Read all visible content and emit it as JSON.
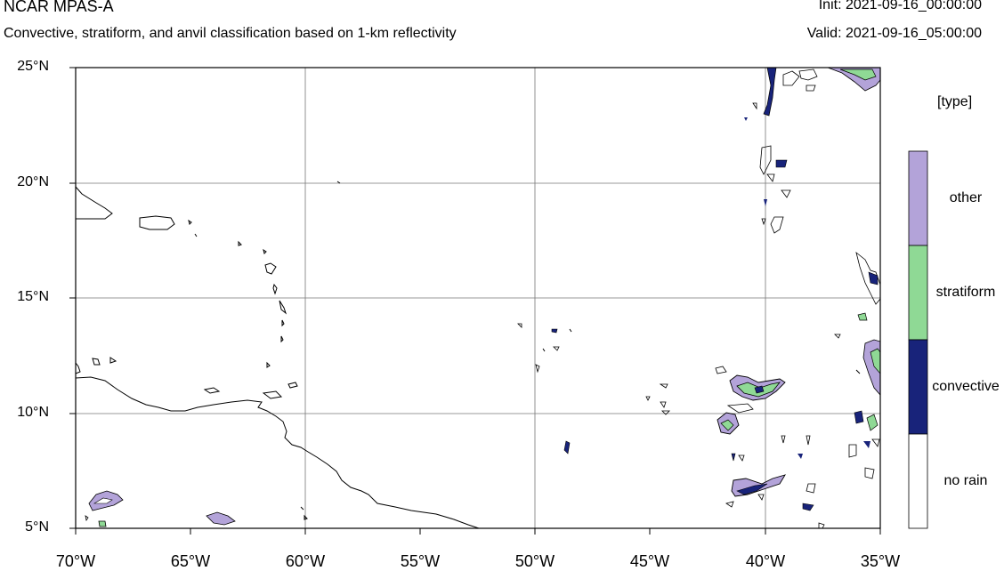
{
  "header": {
    "title": "NCAR MPAS-A",
    "subtitle": "Convective, stratiform, and anvil classification based on 1-km reflectivity",
    "init": "Init: 2021-09-16_00:00:00",
    "valid": "Valid: 2021-09-16_05:00:00"
  },
  "map": {
    "lat_ticks": [
      "25°N",
      "20°N",
      "15°N",
      "10°N",
      "5°N"
    ],
    "lon_ticks": [
      "70°W",
      "65°W",
      "60°W",
      "55°W",
      "50°W",
      "45°W",
      "40°W",
      "35°W"
    ],
    "extent": {
      "lon_min": -70,
      "lon_max": -35,
      "lat_min": 5,
      "lat_max": 25
    }
  },
  "legend": {
    "title": "[type]",
    "categories": [
      {
        "label": "other",
        "color": "#b3a3d9"
      },
      {
        "label": "stratiform",
        "color": "#8fd995"
      },
      {
        "label": "convective",
        "color": "#18237a"
      },
      {
        "label": "no rain",
        "color": "#ffffff"
      }
    ]
  }
}
